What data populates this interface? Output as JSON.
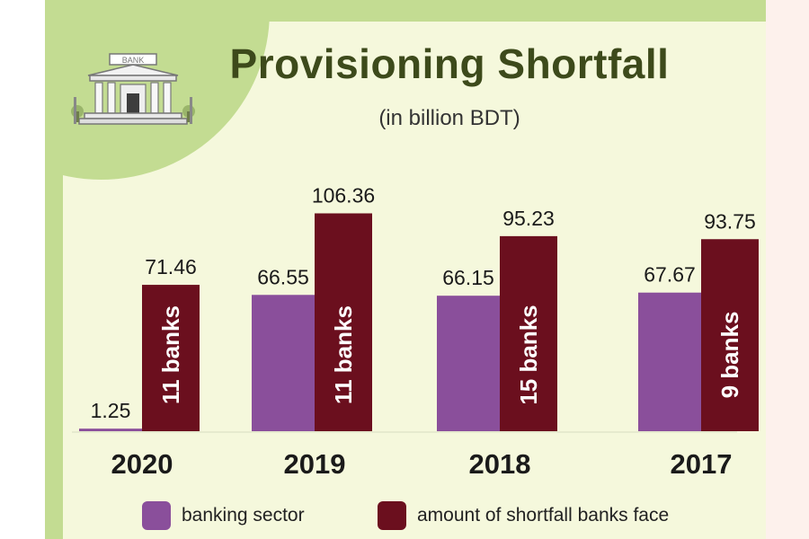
{
  "header": {
    "title": "Provisioning Shortfall",
    "subtitle": "(in billion BDT)",
    "icon": "bank-building-icon",
    "icon_label": "BANK"
  },
  "colors": {
    "banking_sector": "#8a4f9b",
    "shortfall": "#6b0f1e",
    "background": "#f5f8dc",
    "accent_green": "#c3dc92",
    "title": "#3d4a1b"
  },
  "chart_data": {
    "type": "bar",
    "title": "Provisioning Shortfall",
    "subtitle": "(in billion BDT)",
    "categories": [
      "2020",
      "2019",
      "2018",
      "2017"
    ],
    "series": [
      {
        "name": "banking sector",
        "values": [
          1.25,
          66.55,
          66.15,
          67.67
        ]
      },
      {
        "name": "amount of shortfall banks face",
        "values": [
          71.46,
          106.36,
          95.23,
          93.75
        ]
      }
    ],
    "bar_labels": {
      "banking sector": [
        "1.25",
        "66.55",
        "66.15",
        "67.67"
      ],
      "amount of shortfall banks face": [
        "71.46",
        "106.36",
        "95.23",
        "93.75"
      ]
    },
    "annotations": [
      "11 banks",
      "11 banks",
      "15 banks",
      "9 banks"
    ],
    "ylim": [
      0,
      110
    ],
    "grid": false,
    "legend_position": "bottom"
  },
  "legend": [
    {
      "label": "banking sector",
      "color": "#8a4f9b"
    },
    {
      "label": "amount of shortfall banks face",
      "color": "#6b0f1e"
    }
  ]
}
